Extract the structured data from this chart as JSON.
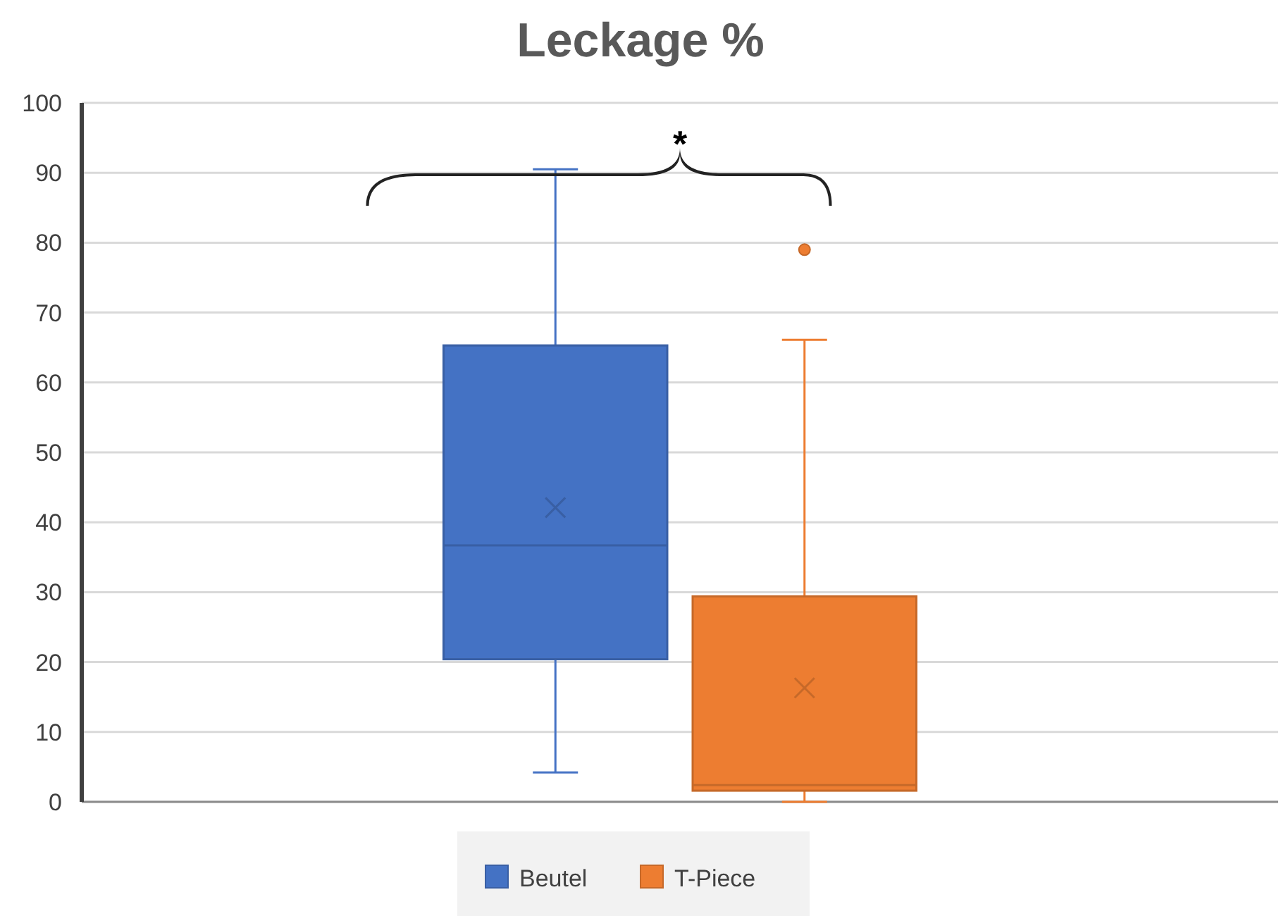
{
  "chart_data": {
    "type": "box",
    "title": "Leckage %",
    "categories": [
      null
    ],
    "ylim": [
      0,
      100
    ],
    "yticks": [
      0,
      10,
      20,
      30,
      40,
      50,
      60,
      70,
      80,
      90,
      100
    ],
    "grid": "y",
    "legend": "bottom",
    "annotations": [
      "*"
    ],
    "series": [
      {
        "name": "Beutel",
        "color": "#4472c4",
        "boxes": [
          {
            "low": 4.2,
            "q1": 20.4,
            "median": 36.7,
            "q3": 65.3,
            "high": 90.5,
            "mean": 42.1
          }
        ]
      },
      {
        "name": "T-Piece",
        "color": "#ed7d31",
        "boxes": [
          {
            "low": 0,
            "q1": 1.6,
            "median": 2.4,
            "q3": 29.4,
            "high": 66.1,
            "mean": 16.3,
            "outliers": [
              79
            ]
          }
        ]
      }
    ]
  }
}
